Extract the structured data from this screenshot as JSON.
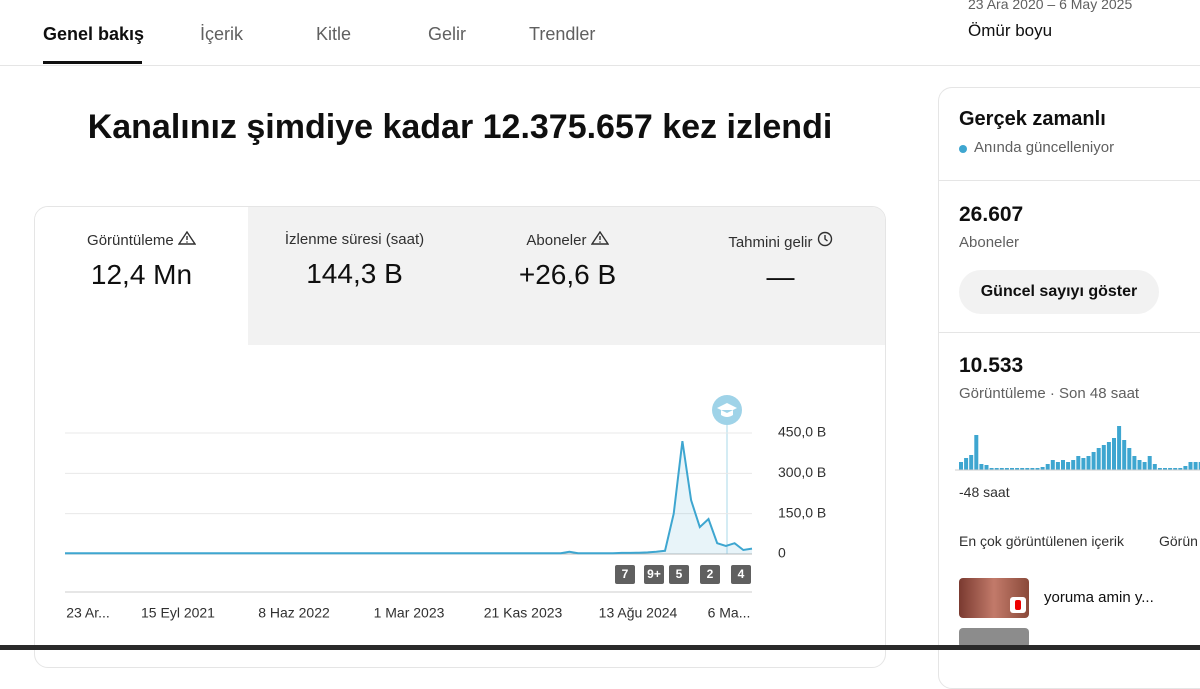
{
  "tabs": [
    "Genel bakış",
    "İçerik",
    "Kitle",
    "Gelir",
    "Trendler"
  ],
  "date_range": "23 Ara 2020 – 6 May 2025",
  "period": "Ömür boyu",
  "headline": "Kanalınız şimdiye kadar 12.375.657 kez izlendi",
  "metrics": [
    {
      "label": "Görüntüleme",
      "value": "12,4 Mn"
    },
    {
      "label": "İzlenme süresi (saat)",
      "value": "144,3 B"
    },
    {
      "label": "Aboneler",
      "value": "+26,6 B"
    },
    {
      "label": "Tahmini gelir",
      "value": "—"
    }
  ],
  "chart": {
    "type": "line",
    "color": "#3ea6d0",
    "values": [
      3000,
      3000,
      3000,
      3000,
      3000,
      3000,
      3000,
      3000,
      3000,
      3000,
      3000,
      3000,
      3000,
      3000,
      3000,
      3000,
      3000,
      3000,
      3000,
      3000,
      3000,
      3000,
      3000,
      3000,
      3000,
      3000,
      3000,
      3000,
      3000,
      3000,
      3000,
      3000,
      3000,
      3000,
      3000,
      3000,
      3000,
      3000,
      3000,
      3000,
      3000,
      3000,
      3000,
      3000,
      3000,
      3000,
      3000,
      3000,
      3000,
      3000,
      3000,
      3000,
      3000,
      3000,
      3000,
      3000,
      3000,
      3000,
      8000,
      3000,
      3000,
      3000,
      3000,
      3000,
      4000,
      4000,
      5000,
      6000,
      8000,
      12000,
      150000,
      420000,
      200000,
      100000,
      130000,
      40000,
      30000,
      40000,
      15000,
      20000
    ],
    "ylim": [
      0,
      450000
    ],
    "yticks": [
      0,
      {
        "value": 150000,
        "label": "150,0 B"
      },
      {
        "value": 300000,
        "label": "300,0 B"
      },
      {
        "value": 450000,
        "label": "450,0 B"
      }
    ],
    "xtick_labels": [
      "23 Ar...",
      "15 Eyl 2021",
      "8 Haz 2022",
      "1 Mar 2023",
      "21 Kas 2023",
      "13 Ağu 2024",
      "6 Ma..."
    ],
    "markers": [
      "7",
      "9+",
      "5",
      "2",
      "4"
    ]
  },
  "realtime": {
    "title": "Gerçek zamanlı",
    "status": "Anında güncelleniyor",
    "subscribers": "26.607",
    "subscribers_label": "Aboneler",
    "button": "Güncel sayıyı göster",
    "views": "10.533",
    "views_label": "Görüntüleme · Son 48 saat",
    "bars": [
      8,
      12,
      15,
      35,
      6,
      5,
      2,
      2,
      2,
      2,
      2,
      2,
      2,
      2,
      2,
      2,
      3,
      6,
      10,
      8,
      10,
      8,
      10,
      14,
      12,
      14,
      18,
      22,
      25,
      28,
      32,
      44,
      30,
      22,
      14,
      10,
      8,
      14,
      6,
      2,
      2,
      2,
      2,
      2,
      4,
      8,
      8,
      8
    ],
    "bars_axis_label": "-48 saat",
    "top_content": "En çok görüntülenen içerik",
    "top_content_tab": "Görün",
    "video_title": "yoruma amin y..."
  }
}
